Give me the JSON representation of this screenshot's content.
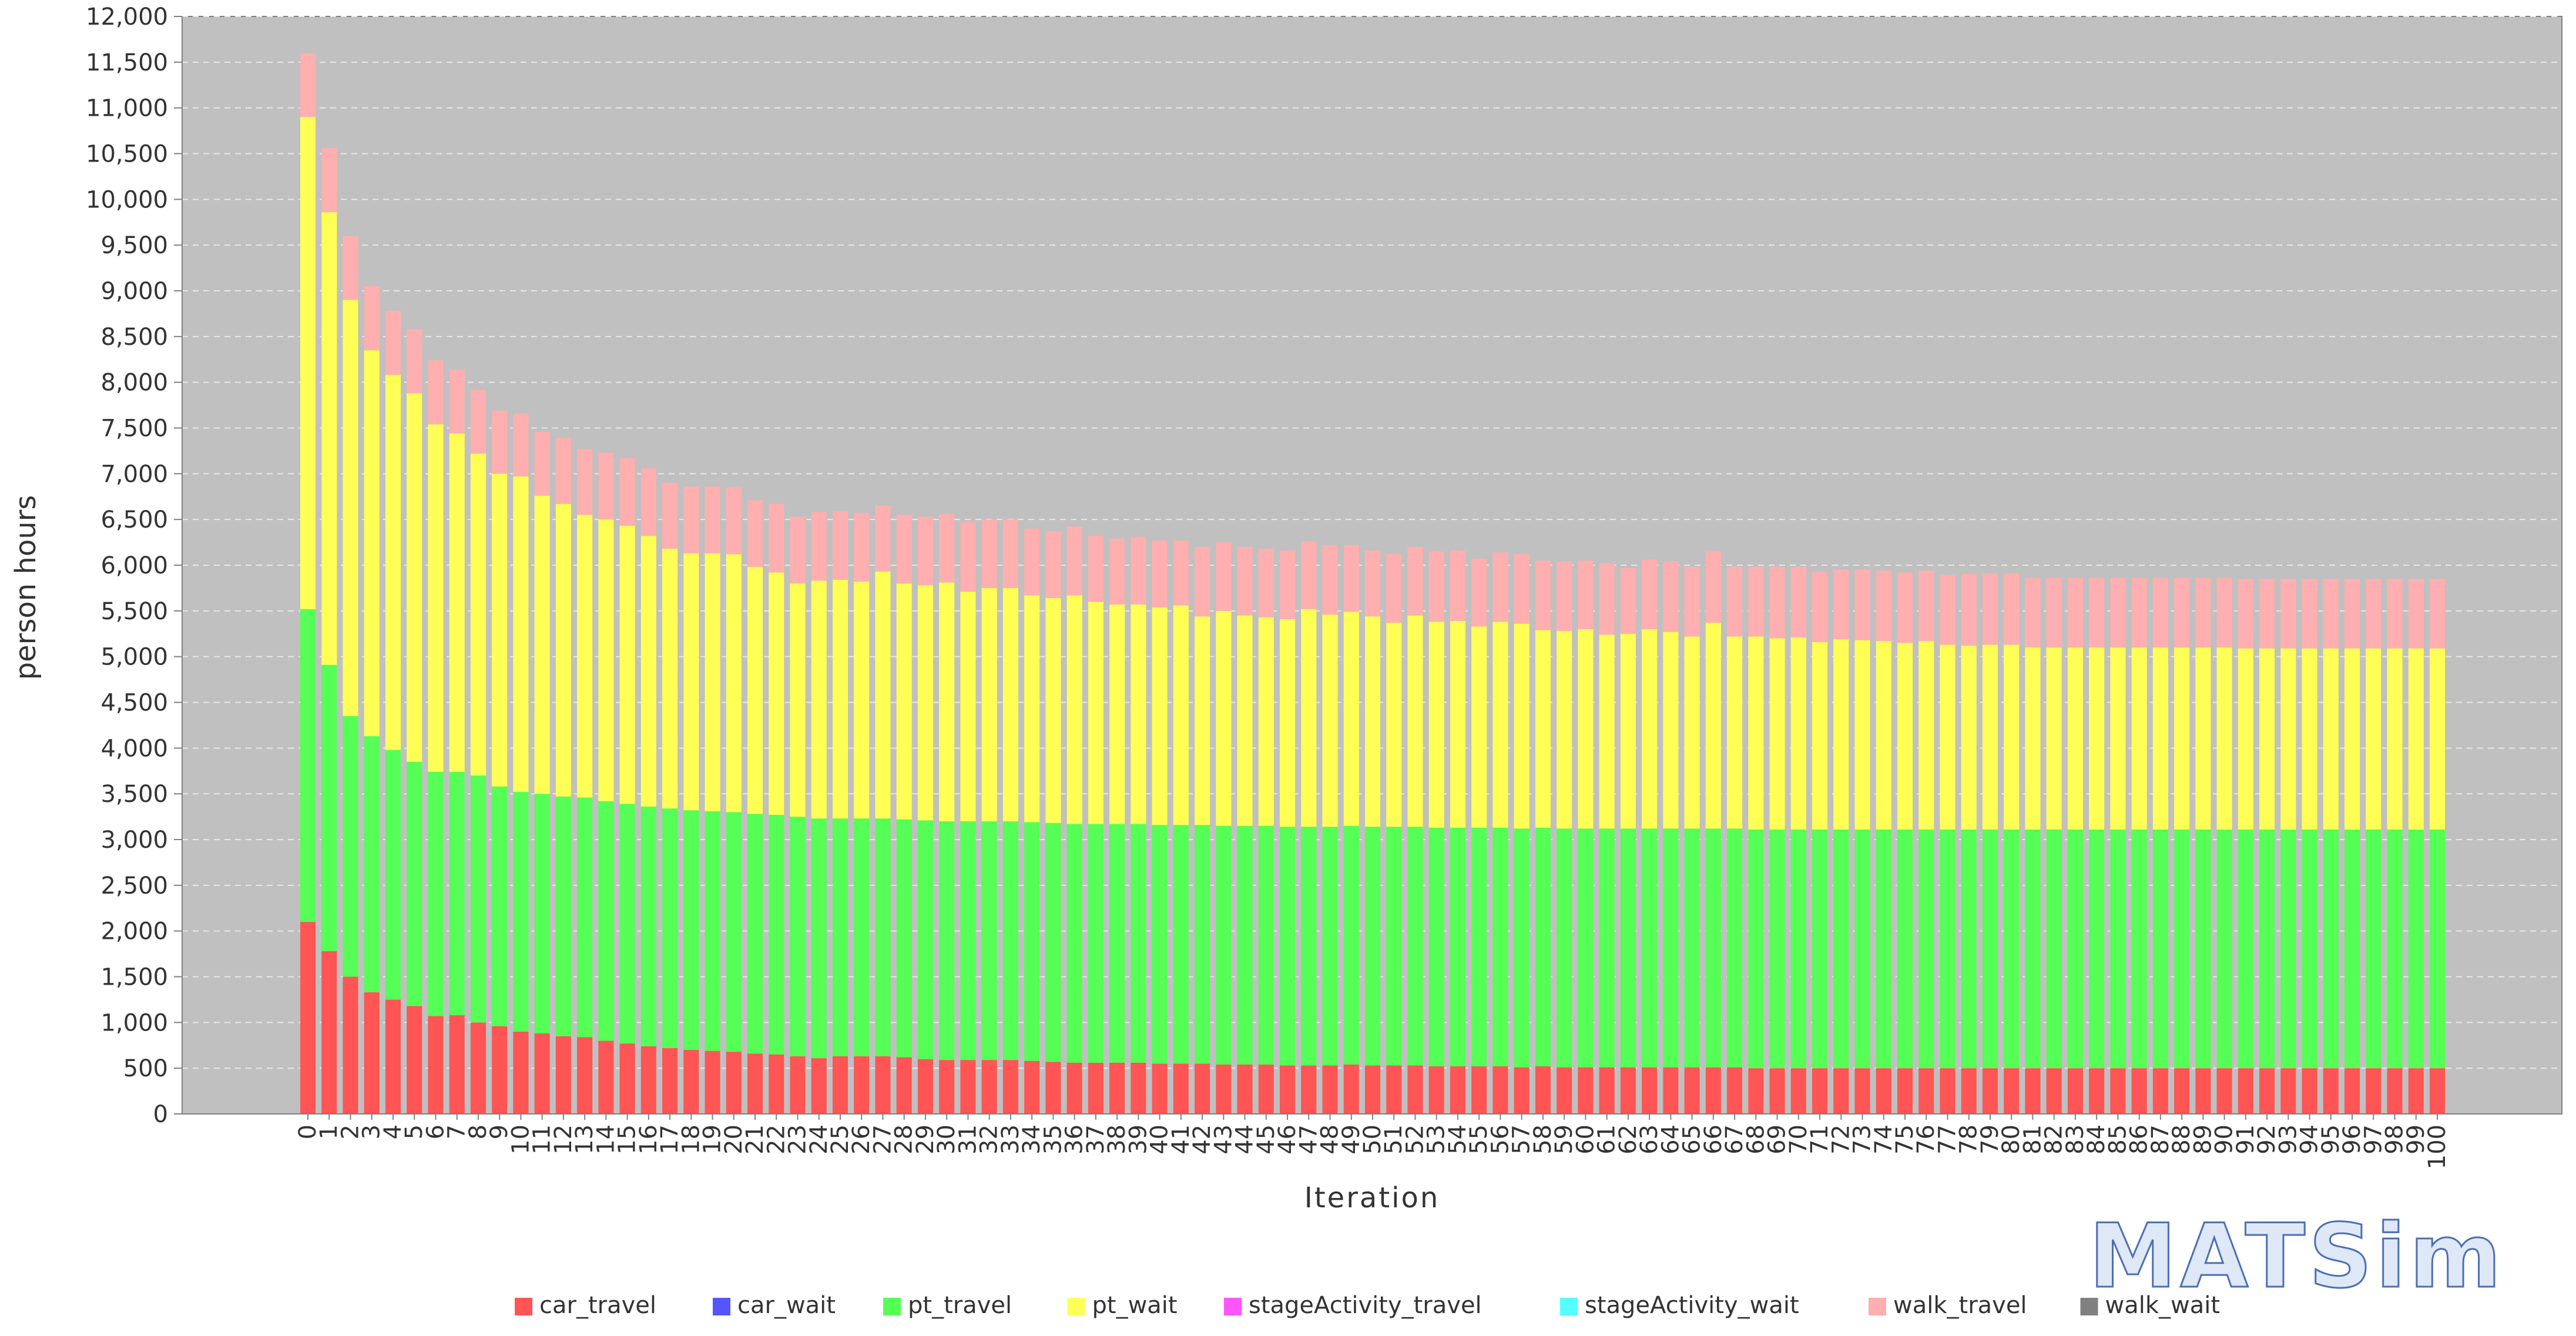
{
  "logo": {
    "text": "MATSim"
  },
  "chart_data": {
    "type": "bar",
    "stacked": true,
    "xlabel": "Iteration",
    "ylabel": "person hours",
    "ylim": [
      0,
      12000
    ],
    "yticks": [
      0,
      500,
      1000,
      1500,
      2000,
      2500,
      3000,
      3500,
      4000,
      4500,
      5000,
      5500,
      6000,
      6500,
      7000,
      7500,
      8000,
      8500,
      9000,
      9500,
      10000,
      10500,
      11000,
      11500,
      12000
    ],
    "grid": true,
    "legend_position": "bottom",
    "x": [
      0,
      1,
      2,
      3,
      4,
      5,
      6,
      7,
      8,
      9,
      10,
      11,
      12,
      13,
      14,
      15,
      16,
      17,
      18,
      19,
      20,
      21,
      22,
      23,
      24,
      25,
      26,
      27,
      28,
      29,
      30,
      31,
      32,
      33,
      34,
      35,
      36,
      37,
      38,
      39,
      40,
      41,
      42,
      43,
      44,
      45,
      46,
      47,
      48,
      49,
      50,
      51,
      52,
      53,
      54,
      55,
      56,
      57,
      58,
      59,
      60,
      61,
      62,
      63,
      64,
      65,
      66,
      67,
      68,
      69,
      70,
      71,
      72,
      73,
      74,
      75,
      76,
      77,
      78,
      79,
      80,
      81,
      82,
      83,
      84,
      85,
      86,
      87,
      88,
      89,
      90,
      91,
      92,
      93,
      94,
      95,
      96,
      97,
      98,
      99,
      100
    ],
    "series": [
      {
        "name": "car_travel",
        "color": "#ff5555",
        "values": [
          2100,
          1780,
          1500,
          1330,
          1250,
          1180,
          1070,
          1080,
          1000,
          960,
          900,
          880,
          850,
          840,
          800,
          770,
          740,
          720,
          700,
          690,
          680,
          660,
          650,
          630,
          610,
          630,
          630,
          630,
          620,
          600,
          590,
          590,
          590,
          590,
          580,
          570,
          560,
          560,
          560,
          560,
          550,
          550,
          550,
          540,
          540,
          540,
          530,
          530,
          530,
          540,
          530,
          530,
          530,
          520,
          520,
          520,
          520,
          510,
          520,
          510,
          510,
          510,
          510,
          510,
          510,
          510,
          510,
          510,
          500,
          500,
          500,
          500,
          500,
          500,
          500,
          500,
          500,
          500,
          500,
          500,
          500,
          500,
          500,
          500,
          500,
          500,
          500,
          500,
          500,
          500,
          500,
          500,
          500,
          500,
          500,
          500,
          500,
          500,
          500,
          500,
          500
        ]
      },
      {
        "name": "car_wait",
        "color": "#5555ff",
        "values": [
          0,
          0,
          0,
          0,
          0,
          0,
          0,
          0,
          0,
          0,
          0,
          0,
          0,
          0,
          0,
          0,
          0,
          0,
          0,
          0,
          0,
          0,
          0,
          0,
          0,
          0,
          0,
          0,
          0,
          0,
          0,
          0,
          0,
          0,
          0,
          0,
          0,
          0,
          0,
          0,
          0,
          0,
          0,
          0,
          0,
          0,
          0,
          0,
          0,
          0,
          0,
          0,
          0,
          0,
          0,
          0,
          0,
          0,
          0,
          0,
          0,
          0,
          0,
          0,
          0,
          0,
          0,
          0,
          0,
          0,
          0,
          0,
          0,
          0,
          0,
          0,
          0,
          0,
          0,
          0,
          0,
          0,
          0,
          0,
          0,
          0,
          0,
          0,
          0,
          0,
          0,
          0,
          0,
          0,
          0,
          0,
          0,
          0,
          0,
          0,
          0
        ]
      },
      {
        "name": "pt_travel",
        "color": "#55ff55",
        "values": [
          3420,
          3130,
          2850,
          2800,
          2730,
          2670,
          2670,
          2660,
          2700,
          2620,
          2620,
          2620,
          2620,
          2620,
          2620,
          2620,
          2620,
          2620,
          2620,
          2620,
          2620,
          2620,
          2620,
          2620,
          2620,
          2600,
          2600,
          2600,
          2600,
          2610,
          2610,
          2610,
          2610,
          2610,
          2610,
          2610,
          2610,
          2610,
          2610,
          2610,
          2610,
          2610,
          2610,
          2610,
          2610,
          2610,
          2610,
          2610,
          2610,
          2610,
          2610,
          2610,
          2610,
          2610,
          2610,
          2610,
          2610,
          2610,
          2610,
          2610,
          2610,
          2610,
          2610,
          2610,
          2610,
          2610,
          2610,
          2610,
          2610,
          2610,
          2610,
          2610,
          2610,
          2610,
          2610,
          2610,
          2610,
          2610,
          2610,
          2610,
          2610,
          2610,
          2610,
          2610,
          2610,
          2610,
          2610,
          2610,
          2610,
          2610,
          2610,
          2610,
          2610,
          2610,
          2610,
          2610,
          2610,
          2610,
          2610,
          2610,
          2610
        ]
      },
      {
        "name": "pt_wait",
        "color": "#ffff55",
        "values": [
          5380,
          4950,
          4550,
          4220,
          4100,
          4030,
          3800,
          3700,
          3520,
          3420,
          3450,
          3260,
          3200,
          3090,
          3080,
          3040,
          2960,
          2840,
          2810,
          2820,
          2820,
          2700,
          2650,
          2550,
          2600,
          2610,
          2590,
          2700,
          2580,
          2570,
          2610,
          2510,
          2550,
          2550,
          2480,
          2460,
          2500,
          2430,
          2400,
          2400,
          2380,
          2400,
          2280,
          2350,
          2300,
          2280,
          2270,
          2380,
          2320,
          2340,
          2300,
          2230,
          2310,
          2250,
          2260,
          2200,
          2250,
          2240,
          2160,
          2160,
          2180,
          2120,
          2130,
          2180,
          2150,
          2100,
          2250,
          2100,
          2110,
          2090,
          2100,
          2050,
          2080,
          2070,
          2060,
          2040,
          2060,
          2020,
          2010,
          2020,
          2020,
          1990,
          1990,
          1990,
          1990,
          1990,
          1990,
          1990,
          1990,
          1990,
          1990,
          1980,
          1980,
          1980,
          1980,
          1980,
          1980,
          1980,
          1980,
          1980,
          1980
        ]
      },
      {
        "name": "stageActivity_travel",
        "color": "#ff55ff",
        "values": [
          0,
          0,
          0,
          0,
          0,
          0,
          0,
          0,
          0,
          0,
          0,
          0,
          0,
          0,
          0,
          0,
          0,
          0,
          0,
          0,
          0,
          0,
          0,
          0,
          0,
          0,
          0,
          0,
          0,
          0,
          0,
          0,
          0,
          0,
          0,
          0,
          0,
          0,
          0,
          0,
          0,
          0,
          0,
          0,
          0,
          0,
          0,
          0,
          0,
          0,
          0,
          0,
          0,
          0,
          0,
          0,
          0,
          0,
          0,
          0,
          0,
          0,
          0,
          0,
          0,
          0,
          0,
          0,
          0,
          0,
          0,
          0,
          0,
          0,
          0,
          0,
          0,
          0,
          0,
          0,
          0,
          0,
          0,
          0,
          0,
          0,
          0,
          0,
          0,
          0,
          0,
          0,
          0,
          0,
          0,
          0,
          0,
          0,
          0,
          0,
          0
        ]
      },
      {
        "name": "stageActivity_wait",
        "color": "#55ffff",
        "values": [
          0,
          0,
          0,
          0,
          0,
          0,
          0,
          0,
          0,
          0,
          0,
          0,
          0,
          0,
          0,
          0,
          0,
          0,
          0,
          0,
          0,
          0,
          0,
          0,
          0,
          0,
          0,
          0,
          0,
          0,
          0,
          0,
          0,
          0,
          0,
          0,
          0,
          0,
          0,
          0,
          0,
          0,
          0,
          0,
          0,
          0,
          0,
          0,
          0,
          0,
          0,
          0,
          0,
          0,
          0,
          0,
          0,
          0,
          0,
          0,
          0,
          0,
          0,
          0,
          0,
          0,
          0,
          0,
          0,
          0,
          0,
          0,
          0,
          0,
          0,
          0,
          0,
          0,
          0,
          0,
          0,
          0,
          0,
          0,
          0,
          0,
          0,
          0,
          0,
          0,
          0,
          0,
          0,
          0,
          0,
          0,
          0,
          0,
          0,
          0,
          0
        ]
      },
      {
        "name": "walk_travel",
        "color": "#ffafaf",
        "values": [
          700,
          700,
          700,
          700,
          700,
          700,
          700,
          700,
          700,
          690,
          690,
          700,
          720,
          720,
          730,
          740,
          740,
          720,
          730,
          730,
          730,
          730,
          750,
          730,
          750,
          750,
          750,
          720,
          750,
          750,
          750,
          760,
          750,
          750,
          730,
          730,
          750,
          720,
          720,
          740,
          730,
          710,
          760,
          750,
          750,
          750,
          750,
          740,
          760,
          730,
          720,
          750,
          750,
          770,
          770,
          740,
          760,
          760,
          760,
          760,
          750,
          780,
          720,
          760,
          770,
          760,
          780,
          760,
          760,
          780,
          770,
          770,
          760,
          770,
          770,
          770,
          770,
          760,
          780,
          780,
          780,
          760,
          760,
          760,
          760,
          760,
          760,
          760,
          760,
          760,
          760,
          760,
          760,
          760,
          760,
          760,
          760,
          760,
          760,
          760,
          760
        ]
      },
      {
        "name": "walk_wait",
        "color": "#808080",
        "values": [
          0,
          0,
          0,
          0,
          0,
          0,
          0,
          0,
          0,
          0,
          0,
          0,
          0,
          0,
          0,
          0,
          0,
          0,
          0,
          0,
          0,
          0,
          0,
          0,
          0,
          0,
          0,
          0,
          0,
          0,
          0,
          0,
          0,
          0,
          0,
          0,
          0,
          0,
          0,
          0,
          0,
          0,
          0,
          0,
          0,
          0,
          0,
          0,
          0,
          0,
          0,
          0,
          0,
          0,
          0,
          0,
          0,
          0,
          0,
          0,
          0,
          0,
          0,
          0,
          0,
          0,
          0,
          0,
          0,
          0,
          0,
          0,
          0,
          0,
          0,
          0,
          0,
          0,
          0,
          0,
          0,
          0,
          0,
          0,
          0,
          0,
          0,
          0,
          0,
          0,
          0,
          0,
          0,
          0,
          0,
          0,
          0,
          0,
          0,
          0,
          0
        ]
      }
    ],
    "legend": [
      "car_travel",
      "car_wait",
      "pt_travel",
      "pt_wait",
      "stageActivity_travel",
      "stageActivity_wait",
      "walk_travel",
      "walk_wait"
    ]
  }
}
